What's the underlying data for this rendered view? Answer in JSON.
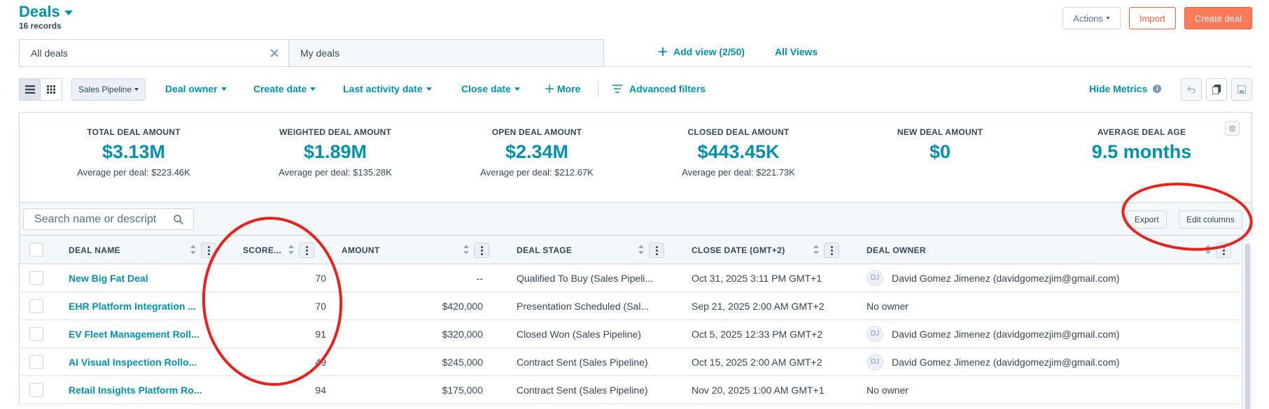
{
  "header": {
    "title": "Deals",
    "record_count": "16 records",
    "actions_label": "Actions",
    "import_label": "Import",
    "create_label": "Create deal"
  },
  "tabs": {
    "all_deals": "All deals",
    "my_deals": "My deals",
    "add_view": "Add view (2/50)",
    "all_views": "All Views"
  },
  "filters": {
    "pipeline": "Sales Pipeline",
    "deal_owner": "Deal owner",
    "create_date": "Create date",
    "last_activity": "Last activity date",
    "close_date": "Close date",
    "more": "More",
    "advanced": "Advanced filters",
    "hide_metrics": "Hide Metrics"
  },
  "metrics": [
    {
      "label": "TOTAL DEAL AMOUNT",
      "value": "$3.13M",
      "sub": "Average per deal: $223.46K"
    },
    {
      "label": "WEIGHTED DEAL AMOUNT",
      "value": "$1.89M",
      "sub": "Average per deal: $135.28K"
    },
    {
      "label": "OPEN DEAL AMOUNT",
      "value": "$2.34M",
      "sub": "Average per deal: $212.67K"
    },
    {
      "label": "CLOSED DEAL AMOUNT",
      "value": "$443.45K",
      "sub": "Average per deal: $221.73K"
    },
    {
      "label": "NEW DEAL AMOUNT",
      "value": "$0",
      "sub": ""
    },
    {
      "label": "AVERAGE DEAL AGE",
      "value": "9.5 months",
      "sub": ""
    }
  ],
  "table_toolbar": {
    "search_placeholder": "Search name or descript",
    "export_label": "Export",
    "edit_columns_label": "Edit columns"
  },
  "columns": {
    "deal_name": "DEAL NAME",
    "score": "SCORE...",
    "amount": "AMOUNT",
    "deal_stage": "DEAL STAGE",
    "close_date": "CLOSE DATE (GMT+2)",
    "deal_owner": "DEAL OWNER"
  },
  "rows": [
    {
      "name": "New Big Fat Deal",
      "score": "70",
      "amount": "--",
      "stage": "Qualified To Buy (Sales Pipeli...",
      "close": "Oct 31, 2025 3:11 PM GMT+1",
      "avatar": "DJ",
      "owner": "David Gomez Jimenez (davidgomezjim@gmail.com)"
    },
    {
      "name": "EHR Platform Integration ...",
      "score": "70",
      "amount": "$420,000",
      "stage": "Presentation Scheduled (Sal...",
      "close": "Sep 21, 2025 2:00 AM GMT+2",
      "avatar": "",
      "owner": "No owner"
    },
    {
      "name": "EV Fleet Management Roll...",
      "score": "91",
      "amount": "$320,000",
      "stage": "Closed Won (Sales Pipeline)",
      "close": "Oct 5, 2025 12:33 PM GMT+2",
      "avatar": "DJ",
      "owner": "David Gomez Jimenez (davidgomezjim@gmail.com)"
    },
    {
      "name": "AI Visual Inspection Rollo...",
      "score": "49",
      "amount": "$245,000",
      "stage": "Contract Sent (Sales Pipeline)",
      "close": "Oct 15, 2025 2:00 AM GMT+2",
      "avatar": "DJ",
      "owner": "David Gomez Jimenez (davidgomezjim@gmail.com)"
    },
    {
      "name": "Retail Insights Platform Ro...",
      "score": "94",
      "amount": "$175,000",
      "stage": "Contract Sent (Sales Pipeline)",
      "close": "Nov 20, 2025 1:00 AM GMT+1",
      "avatar": "",
      "owner": "No owner"
    }
  ]
}
